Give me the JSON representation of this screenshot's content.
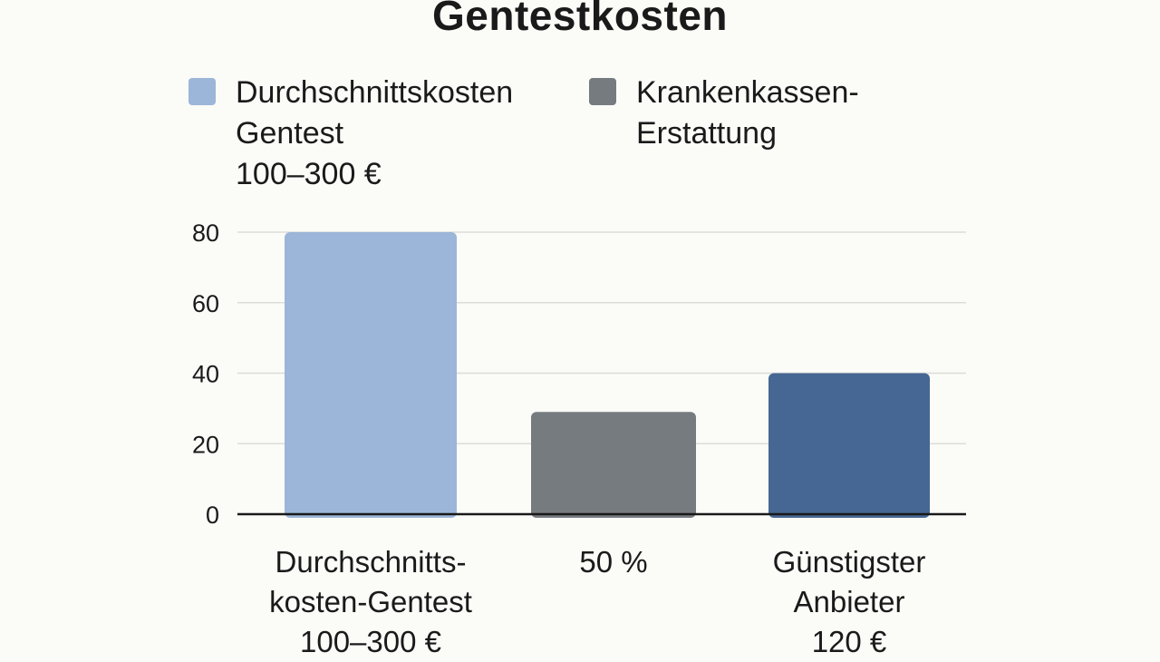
{
  "chart_data": {
    "type": "bar",
    "title": "Gentestkosten",
    "legend": [
      {
        "lines": [
          "Durchschnittskosten",
          "Gentest",
          "100–300 €"
        ],
        "color": "#9bb6d8"
      },
      {
        "lines": [
          "Krankenkassen-",
          "Erstattung"
        ],
        "color": "#767b80"
      }
    ],
    "categories": [
      {
        "lines": [
          "Durchschnitts-",
          "kosten-Gentest",
          "100–300 €"
        ]
      },
      {
        "lines": [
          "50 %"
        ]
      },
      {
        "lines": [
          "Günstigster",
          "Anbieter",
          "120 €"
        ]
      }
    ],
    "values": [
      80,
      29,
      40
    ],
    "colors": [
      "#9bb6d8",
      "#767b80",
      "#466793"
    ],
    "ylim": [
      0,
      80
    ],
    "yticks": [
      0,
      20,
      40,
      60,
      80
    ],
    "grid": true,
    "legend_position": "top"
  }
}
